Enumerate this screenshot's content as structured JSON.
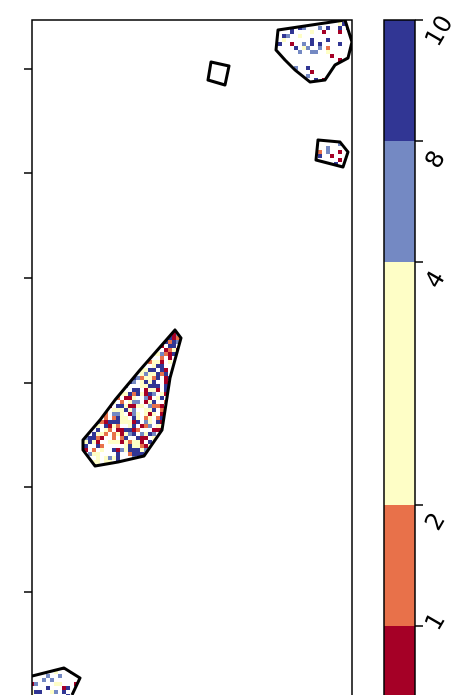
{
  "map": {
    "frame_color": "#000000",
    "polygon_outline_color": "#000000",
    "background_color": "#ffffff"
  },
  "colorbar": {
    "classes": [
      {
        "color": "#a50026"
      },
      {
        "color": "#e8714a"
      },
      {
        "color": "#fefec6"
      },
      {
        "color": "#7489c3"
      },
      {
        "color": "#313694"
      }
    ],
    "tick_labels": [
      "1",
      "2",
      "4",
      "8",
      "10"
    ]
  }
}
